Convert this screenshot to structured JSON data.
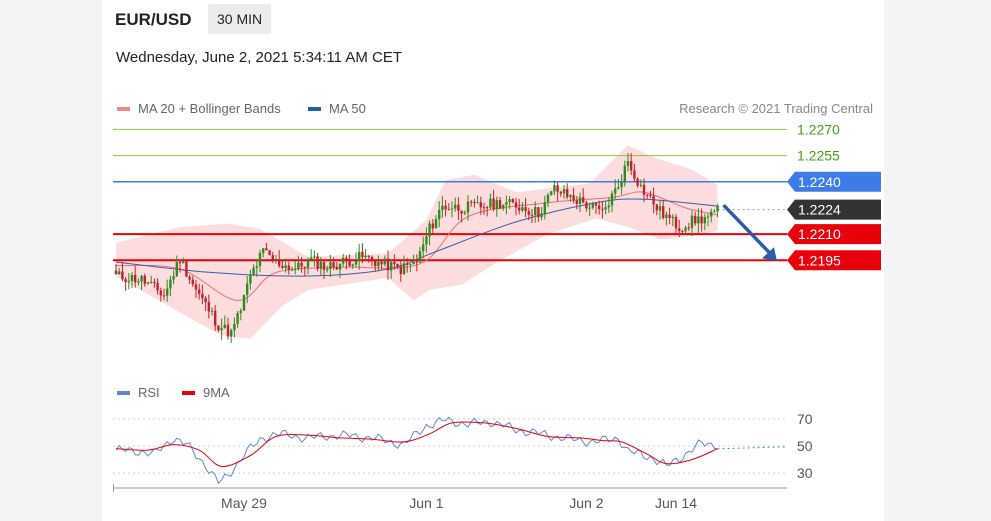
{
  "header": {
    "symbol": "EUR/USD",
    "timeframe": "30 MIN",
    "datetime": "Wednesday, June 2, 2021 5:34:11 AM CET"
  },
  "legend": {
    "ma20": "MA 20 + Bollinger Bands",
    "ma50": "MA 50",
    "credit": "Research © 2021 Trading Central"
  },
  "rsi_legend": {
    "rsi": "RSI",
    "ma9": "9MA"
  },
  "colors": {
    "resistance": "#8dc63f",
    "support": "#e8000b",
    "pivot": "#3d7be6",
    "last": "#333333",
    "ma20": "#e87070",
    "ma50": "#3a5ea8",
    "bands": "#fcd8d8",
    "bull": "#2e8b20",
    "bear": "#c0232c",
    "rsi": "#5b87d8",
    "rsi_ma": "#e8000b",
    "arrow": "#2a5ca8"
  },
  "chart_data": [
    {
      "type": "candlestick",
      "title": "EUR/USD 30 MIN",
      "ylim": [
        1.2135,
        1.2288
      ],
      "levels": [
        {
          "label": "1.2270",
          "value": 1.227,
          "role": "resistance"
        },
        {
          "label": "1.2255",
          "value": 1.2255,
          "role": "resistance"
        },
        {
          "label": "1.2240",
          "value": 1.224,
          "role": "pivot"
        },
        {
          "label": "1.2224",
          "value": 1.2224,
          "role": "last"
        },
        {
          "label": "1.2210",
          "value": 1.221,
          "role": "support"
        },
        {
          "label": "1.2195",
          "value": 1.2195,
          "role": "support"
        }
      ],
      "close_anchors": [
        [
          0,
          1.2186
        ],
        [
          8,
          1.2184
        ],
        [
          15,
          1.2175
        ],
        [
          20,
          1.2196
        ],
        [
          25,
          1.2178
        ],
        [
          32,
          1.2158
        ],
        [
          36,
          1.2153
        ],
        [
          39,
          1.2167
        ],
        [
          42,
          1.2186
        ],
        [
          46,
          1.22
        ],
        [
          50,
          1.2194
        ],
        [
          56,
          1.219
        ],
        [
          61,
          1.2195
        ],
        [
          66,
          1.2191
        ],
        [
          71,
          1.2194
        ],
        [
          77,
          1.2197
        ],
        [
          83,
          1.2193
        ],
        [
          89,
          1.219
        ],
        [
          94,
          1.2194
        ],
        [
          98,
          1.2213
        ],
        [
          102,
          1.2226
        ],
        [
          108,
          1.2225
        ],
        [
          114,
          1.2226
        ],
        [
          120,
          1.2228
        ],
        [
          126,
          1.2226
        ],
        [
          132,
          1.2222
        ],
        [
          137,
          1.2236
        ],
        [
          141,
          1.2232
        ],
        [
          146,
          1.2228
        ],
        [
          152,
          1.2222
        ],
        [
          157,
          1.2238
        ],
        [
          160,
          1.2252
        ],
        [
          164,
          1.2237
        ],
        [
          170,
          1.2223
        ],
        [
          176,
          1.2214
        ],
        [
          181,
          1.2218
        ],
        [
          186,
          1.222
        ],
        [
          188,
          1.2223
        ]
      ],
      "ma20": [
        [
          0,
          1.2192
        ],
        [
          20,
          1.219
        ],
        [
          38,
          1.2172
        ],
        [
          50,
          1.2188
        ],
        [
          70,
          1.2191
        ],
        [
          95,
          1.2193
        ],
        [
          110,
          1.222
        ],
        [
          135,
          1.2228
        ],
        [
          155,
          1.2231
        ],
        [
          165,
          1.2234
        ],
        [
          178,
          1.2225
        ],
        [
          188,
          1.2221
        ]
      ],
      "ma50": [
        [
          0,
          1.2194
        ],
        [
          30,
          1.2188
        ],
        [
          60,
          1.2186
        ],
        [
          85,
          1.219
        ],
        [
          100,
          1.22
        ],
        [
          125,
          1.2217
        ],
        [
          150,
          1.2228
        ],
        [
          165,
          1.223
        ],
        [
          188,
          1.2226
        ]
      ],
      "bb_upper": [
        [
          0,
          1.2205
        ],
        [
          20,
          1.2214
        ],
        [
          35,
          1.2216
        ],
        [
          45,
          1.2213
        ],
        [
          60,
          1.2197
        ],
        [
          85,
          1.2199
        ],
        [
          97,
          1.2218
        ],
        [
          103,
          1.2241
        ],
        [
          112,
          1.2244
        ],
        [
          125,
          1.2234
        ],
        [
          148,
          1.2239
        ],
        [
          160,
          1.2261
        ],
        [
          168,
          1.2254
        ],
        [
          180,
          1.2247
        ],
        [
          188,
          1.2238
        ]
      ],
      "bb_lower": [
        [
          0,
          1.2186
        ],
        [
          20,
          1.2165
        ],
        [
          33,
          1.2152
        ],
        [
          42,
          1.215
        ],
        [
          52,
          1.2169
        ],
        [
          60,
          1.2178
        ],
        [
          85,
          1.2185
        ],
        [
          93,
          1.2172
        ],
        [
          98,
          1.2178
        ],
        [
          108,
          1.2181
        ],
        [
          120,
          1.2195
        ],
        [
          135,
          1.221
        ],
        [
          150,
          1.2219
        ],
        [
          160,
          1.2214
        ],
        [
          170,
          1.2207
        ],
        [
          180,
          1.2209
        ],
        [
          188,
          1.2212
        ]
      ],
      "forecast_arrow": {
        "from": 1.2226,
        "to": 1.2195
      }
    },
    {
      "type": "line",
      "title": "RSI",
      "ylim": [
        22,
        78
      ],
      "y_ticks": [
        "70",
        "50",
        "30"
      ],
      "x_ticks": [
        {
          "label": "May 29",
          "index": 40
        },
        {
          "label": "Jun 1",
          "index": 97
        },
        {
          "label": "Jun 2",
          "index": 147
        },
        {
          "label": "Jun 14",
          "index": 175
        }
      ],
      "rsi": [
        [
          0,
          47
        ],
        [
          8,
          46
        ],
        [
          12,
          44
        ],
        [
          18,
          56
        ],
        [
          22,
          51
        ],
        [
          28,
          36
        ],
        [
          32,
          23
        ],
        [
          35,
          28
        ],
        [
          40,
          44
        ],
        [
          46,
          56
        ],
        [
          50,
          59
        ],
        [
          60,
          56
        ],
        [
          70,
          58
        ],
        [
          80,
          56
        ],
        [
          90,
          51
        ],
        [
          97,
          65
        ],
        [
          103,
          69
        ],
        [
          110,
          66
        ],
        [
          117,
          68
        ],
        [
          125,
          62
        ],
        [
          135,
          58
        ],
        [
          142,
          55
        ],
        [
          150,
          53
        ],
        [
          157,
          56
        ],
        [
          160,
          46
        ],
        [
          167,
          42
        ],
        [
          172,
          35
        ],
        [
          178,
          44
        ],
        [
          183,
          52
        ],
        [
          188,
          51
        ]
      ],
      "rsi_ma": [
        [
          0,
          48
        ],
        [
          10,
          47
        ],
        [
          18,
          51
        ],
        [
          26,
          47
        ],
        [
          33,
          35
        ],
        [
          42,
          43
        ],
        [
          50,
          57
        ],
        [
          60,
          58
        ],
        [
          70,
          56
        ],
        [
          80,
          55
        ],
        [
          90,
          53
        ],
        [
          98,
          59
        ],
        [
          105,
          67
        ],
        [
          115,
          67
        ],
        [
          125,
          63
        ],
        [
          135,
          57
        ],
        [
          145,
          56
        ],
        [
          152,
          54
        ],
        [
          158,
          53
        ],
        [
          166,
          44
        ],
        [
          172,
          37
        ],
        [
          180,
          40
        ],
        [
          188,
          48
        ]
      ]
    }
  ]
}
